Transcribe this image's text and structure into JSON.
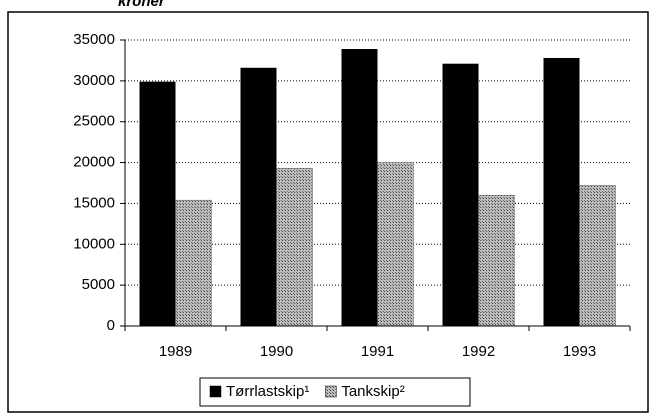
{
  "chart_data": {
    "type": "bar",
    "title": "kroner",
    "categories": [
      "1989",
      "1990",
      "1991",
      "1992",
      "1993"
    ],
    "series": [
      {
        "name": "Tørrlastskip¹",
        "color": "#000000",
        "values": [
          29900,
          31600,
          33900,
          32100,
          32800
        ]
      },
      {
        "name": "Tankskip²",
        "color": "#9a9a9a",
        "values": [
          15400,
          19300,
          20000,
          16000,
          17200
        ]
      }
    ],
    "ylim": [
      0,
      35000
    ],
    "yticks": [
      0,
      5000,
      10000,
      15000,
      20000,
      25000,
      30000,
      35000
    ],
    "grid": true,
    "legend": "bottom"
  }
}
